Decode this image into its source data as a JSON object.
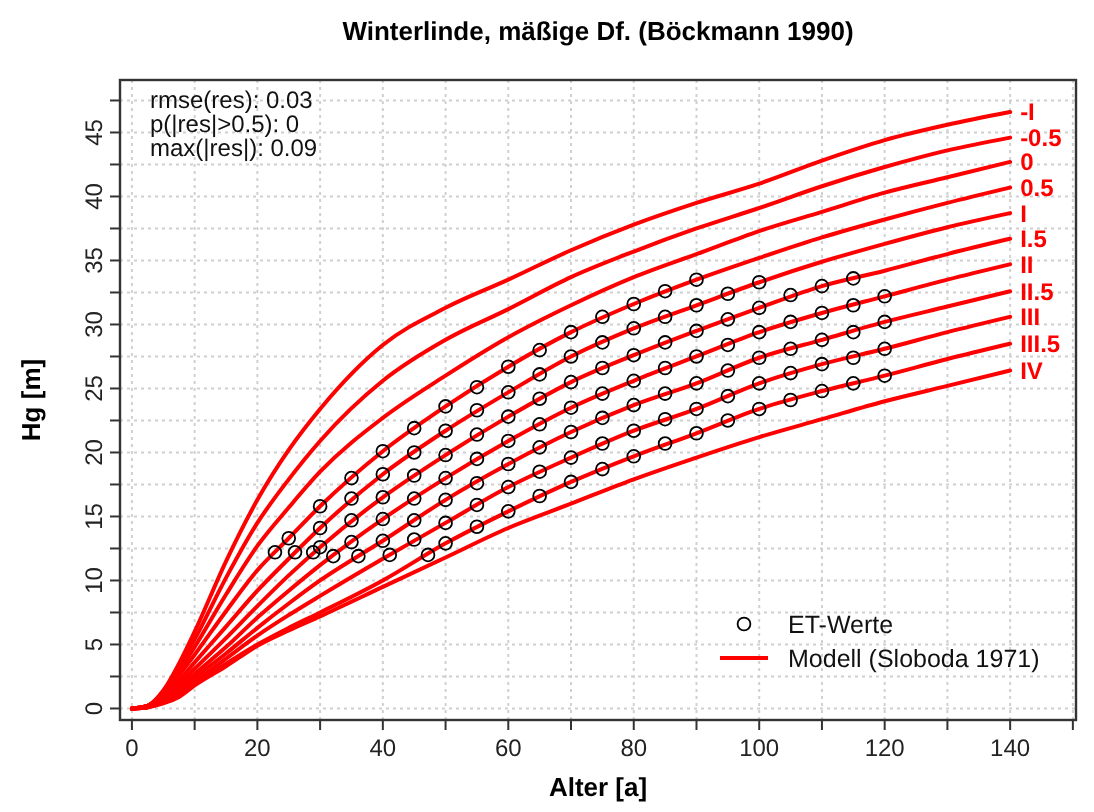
{
  "chart_data": {
    "type": "line",
    "title": "Winterlinde, mäßige Df. (Böckmann 1990)",
    "xlabel": "Alter [a]",
    "ylabel": "Hg [m]",
    "annotations": [
      "rmse(res): 0.03",
      "p(|res|>0.5): 0",
      "max(|res|): 0.09",
      "Modell (Sloboda 1971)"
    ],
    "xlim": [
      -1.9,
      150.5
    ],
    "ylim": [
      -0.9,
      49.1
    ],
    "xticks": [
      0,
      {
        "value": 10,
        "label": null
      },
      20,
      {
        "value": 30,
        "label": null
      },
      40,
      {
        "value": 50,
        "label": null
      },
      60,
      {
        "value": 70,
        "label": null
      },
      80,
      {
        "value": 90,
        "label": null
      },
      100,
      {
        "value": 110,
        "label": null
      },
      120,
      {
        "value": 130,
        "label": null
      },
      140,
      {
        "value": 150,
        "label": null
      }
    ],
    "yticks": [
      0,
      {
        "value": 2.5,
        "label": null
      },
      5,
      {
        "value": 7.5,
        "label": null
      },
      10,
      {
        "value": 12.5,
        "label": null
      },
      15,
      {
        "value": 17.5,
        "label": null
      },
      20,
      {
        "value": 22.5,
        "label": null
      },
      25,
      {
        "value": 27.5,
        "label": null
      },
      30,
      {
        "value": 32.5,
        "label": null
      },
      35,
      {
        "value": 37.5,
        "label": null
      },
      40,
      {
        "value": 42.5,
        "label": null
      },
      45,
      {
        "value": 47.5,
        "label": null
      }
    ],
    "grid": true,
    "legend": "bottom right",
    "x": [
      0,
      2.5,
      5,
      7.5,
      10,
      15,
      20,
      25,
      30,
      40,
      50,
      60,
      70,
      80,
      90,
      100,
      110,
      120,
      130,
      140
    ],
    "series": [
      {
        "name": "-I",
        "color": "#ff0000",
        "values": [
          0,
          0.2,
          1.4,
          3.5,
          6.0,
          11.5,
          16.3,
          20.2,
          23.4,
          28.4,
          31.3,
          33.5,
          35.8,
          37.8,
          39.5,
          41.0,
          42.8,
          44.4,
          45.6,
          46.6
        ]
      },
      {
        "name": "-0.5",
        "color": "#ff0000",
        "values": [
          0,
          0.2,
          1.3,
          3.2,
          5.4,
          10.2,
          14.5,
          17.9,
          20.9,
          25.6,
          28.8,
          31.2,
          33.7,
          35.7,
          37.5,
          39.1,
          40.8,
          42.3,
          43.6,
          44.6
        ]
      },
      {
        "name": "0",
        "color": "#ff0000",
        "values": [
          0,
          0.2,
          1.3,
          2.9,
          4.8,
          8.9,
          12.7,
          15.7,
          18.5,
          22.7,
          26.0,
          29.0,
          31.5,
          33.7,
          35.5,
          37.3,
          38.8,
          40.3,
          41.5,
          42.7
        ]
      },
      {
        "name": "0.5",
        "color": "#ff0000",
        "values": [
          0,
          0.2,
          1.2,
          2.6,
          4.2,
          7.6,
          10.8,
          13.3,
          15.8,
          20.1,
          23.6,
          26.7,
          29.4,
          31.6,
          33.5,
          35.2,
          36.8,
          38.2,
          39.5,
          40.7
        ]
      },
      {
        "name": "I",
        "color": "#ff0000",
        "values": [
          0,
          0.2,
          1.0,
          2.2,
          3.6,
          6.4,
          9.2,
          11.7,
          14.1,
          18.3,
          21.7,
          24.7,
          27.5,
          29.7,
          31.5,
          33.3,
          34.9,
          36.3,
          37.6,
          38.7
        ]
      },
      {
        "name": "I.5",
        "color": "#ff0000",
        "values": [
          0,
          0.2,
          0.9,
          1.9,
          3.1,
          5.5,
          8.0,
          10.4,
          12.6,
          16.5,
          19.8,
          22.8,
          25.5,
          27.6,
          29.5,
          31.3,
          33.0,
          34.2,
          35.5,
          36.7
        ]
      },
      {
        "name": "II",
        "color": "#ff0000",
        "values": [
          0,
          0.1,
          0.8,
          1.6,
          2.7,
          4.8,
          7.1,
          9.2,
          11.2,
          14.8,
          18.0,
          20.9,
          23.5,
          25.6,
          27.5,
          29.4,
          30.9,
          32.2,
          33.5,
          34.7
        ]
      },
      {
        "name": "II.5",
        "color": "#ff0000",
        "values": [
          0,
          0.1,
          0.7,
          1.4,
          2.4,
          4.3,
          6.3,
          8.2,
          10.0,
          13.1,
          16.3,
          19.1,
          21.6,
          23.7,
          25.4,
          27.4,
          28.8,
          30.2,
          31.4,
          32.6
        ]
      },
      {
        "name": "III",
        "color": "#ff0000",
        "values": [
          0,
          0.1,
          0.6,
          1.2,
          2.1,
          3.9,
          5.7,
          7.3,
          8.8,
          11.7,
          14.5,
          17.3,
          19.6,
          21.7,
          23.4,
          25.4,
          26.9,
          28.1,
          29.4,
          30.6
        ]
      },
      {
        "name": "III.5",
        "color": "#ff0000",
        "values": [
          0,
          0.1,
          0.5,
          1.1,
          1.9,
          3.5,
          5.0,
          6.3,
          7.5,
          10.0,
          12.9,
          15.4,
          17.7,
          19.7,
          21.5,
          23.4,
          24.8,
          26.0,
          27.3,
          28.5
        ]
      },
      {
        "name": "IV",
        "color": "#ff0000",
        "values": [
          0,
          0.1,
          0.4,
          0.9,
          1.8,
          3.3,
          4.9,
          6.1,
          7.2,
          9.5,
          11.8,
          14.1,
          16.0,
          17.9,
          19.6,
          21.2,
          22.6,
          24.0,
          25.2,
          26.4
        ]
      },
      {
        "name": "ET-Werte",
        "type": "scatter",
        "marker": "circle",
        "color": "#000000",
        "x": [
          22.8,
          25,
          30,
          35,
          40,
          45,
          50,
          55,
          60,
          65,
          70,
          75,
          80,
          85,
          90,
          26,
          30,
          35,
          40,
          45,
          50,
          55,
          60,
          65,
          70,
          75,
          80,
          85,
          90,
          95,
          100,
          28.9,
          30,
          35,
          40,
          45,
          50,
          55,
          60,
          65,
          70,
          75,
          80,
          85,
          90,
          95,
          100,
          105,
          110,
          115,
          32.1,
          35,
          40,
          45,
          50,
          55,
          60,
          65,
          70,
          75,
          80,
          85,
          90,
          95,
          100,
          105,
          110,
          115,
          120,
          36.1,
          40,
          45,
          50,
          55,
          60,
          65,
          70,
          75,
          80,
          85,
          90,
          95,
          100,
          105,
          110,
          115,
          120,
          41.1,
          45,
          50,
          55,
          60,
          65,
          70,
          75,
          80,
          85,
          90,
          95,
          100,
          105,
          110,
          115,
          120,
          47.2,
          50,
          55,
          60,
          65,
          70,
          75,
          80,
          85,
          90,
          95,
          100,
          105,
          110,
          115,
          120
        ],
        "values": [
          12.2,
          13.3,
          15.8,
          18.0,
          20.1,
          21.9,
          23.6,
          25.1,
          26.7,
          28.0,
          29.4,
          30.6,
          31.6,
          32.6,
          33.5,
          12.2,
          14.1,
          16.4,
          18.3,
          20.0,
          21.7,
          23.3,
          24.7,
          26.1,
          27.5,
          28.6,
          29.7,
          30.6,
          31.5,
          32.4,
          33.3,
          12.2,
          12.6,
          14.7,
          16.5,
          18.2,
          19.8,
          21.4,
          22.8,
          24.2,
          25.5,
          26.6,
          27.6,
          28.6,
          29.5,
          30.4,
          31.3,
          32.3,
          33.0,
          33.6,
          11.9,
          13.0,
          14.8,
          16.4,
          18.0,
          19.5,
          20.9,
          22.2,
          23.5,
          24.6,
          25.6,
          26.6,
          27.5,
          28.4,
          29.4,
          30.2,
          30.9,
          31.5,
          32.2,
          11.9,
          13.1,
          14.7,
          16.3,
          17.6,
          19.1,
          20.4,
          21.6,
          22.7,
          23.7,
          24.6,
          25.4,
          26.4,
          27.4,
          28.1,
          28.8,
          29.4,
          30.2,
          12.0,
          13.2,
          14.5,
          15.9,
          17.3,
          18.5,
          19.6,
          20.7,
          21.7,
          22.6,
          23.4,
          24.4,
          25.4,
          26.2,
          26.9,
          27.4,
          28.1,
          12.0,
          12.9,
          14.2,
          15.4,
          16.6,
          17.7,
          18.7,
          19.7,
          20.7,
          21.5,
          22.5,
          23.4,
          24.1,
          24.8,
          25.4,
          26.0
        ]
      }
    ]
  }
}
